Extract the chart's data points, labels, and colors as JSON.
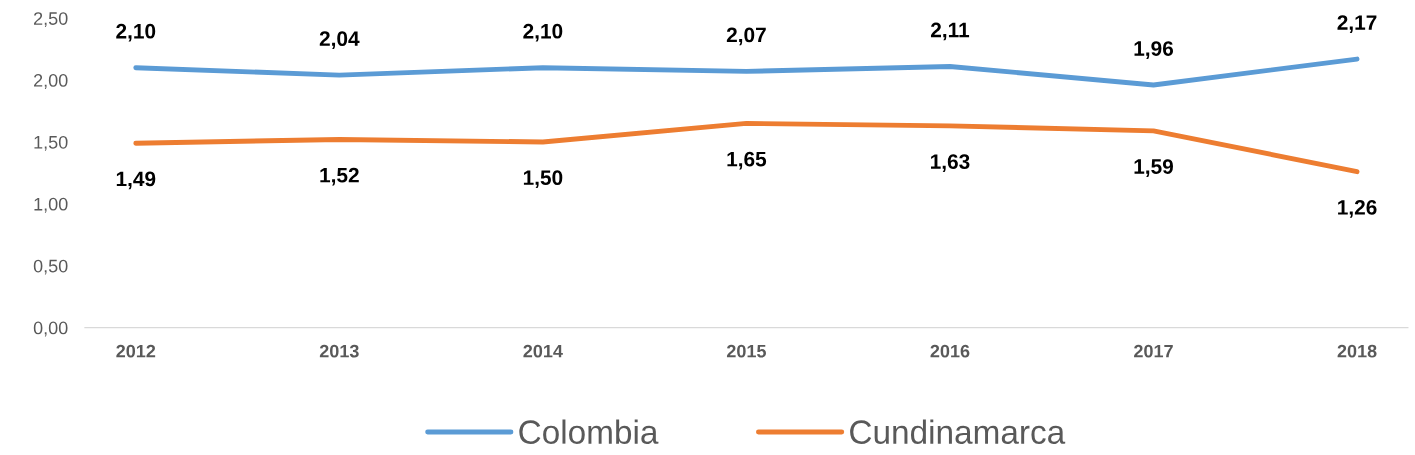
{
  "chart_data": {
    "type": "line",
    "categories": [
      "2012",
      "2013",
      "2014",
      "2015",
      "2016",
      "2017",
      "2018"
    ],
    "series": [
      {
        "name": "Colombia",
        "color": "#5b9bd5",
        "values": [
          2.1,
          2.04,
          2.1,
          2.07,
          2.11,
          1.96,
          2.17
        ],
        "value_labels": [
          "2,10",
          "2,04",
          "2,10",
          "2,07",
          "2,11",
          "1,96",
          "2,17"
        ]
      },
      {
        "name": "Cundinamarca",
        "color": "#ed7d31",
        "values": [
          1.49,
          1.52,
          1.5,
          1.65,
          1.63,
          1.59,
          1.26
        ],
        "value_labels": [
          "1,49",
          "1,52",
          "1,50",
          "1,65",
          "1,63",
          "1,59",
          "1,26"
        ]
      }
    ],
    "ylim": [
      0,
      2.5
    ],
    "yticks": [
      {
        "value": 0,
        "label": "0,00"
      },
      {
        "value": 0.5,
        "label": "0,50"
      },
      {
        "value": 1,
        "label": "1,00"
      },
      {
        "value": 1.5,
        "label": "1,50"
      },
      {
        "value": 2,
        "label": "2,00"
      },
      {
        "value": 2.5,
        "label": "2,50"
      }
    ],
    "grid": false,
    "legend": "bottom",
    "marker": "none",
    "line_style": "solid"
  }
}
